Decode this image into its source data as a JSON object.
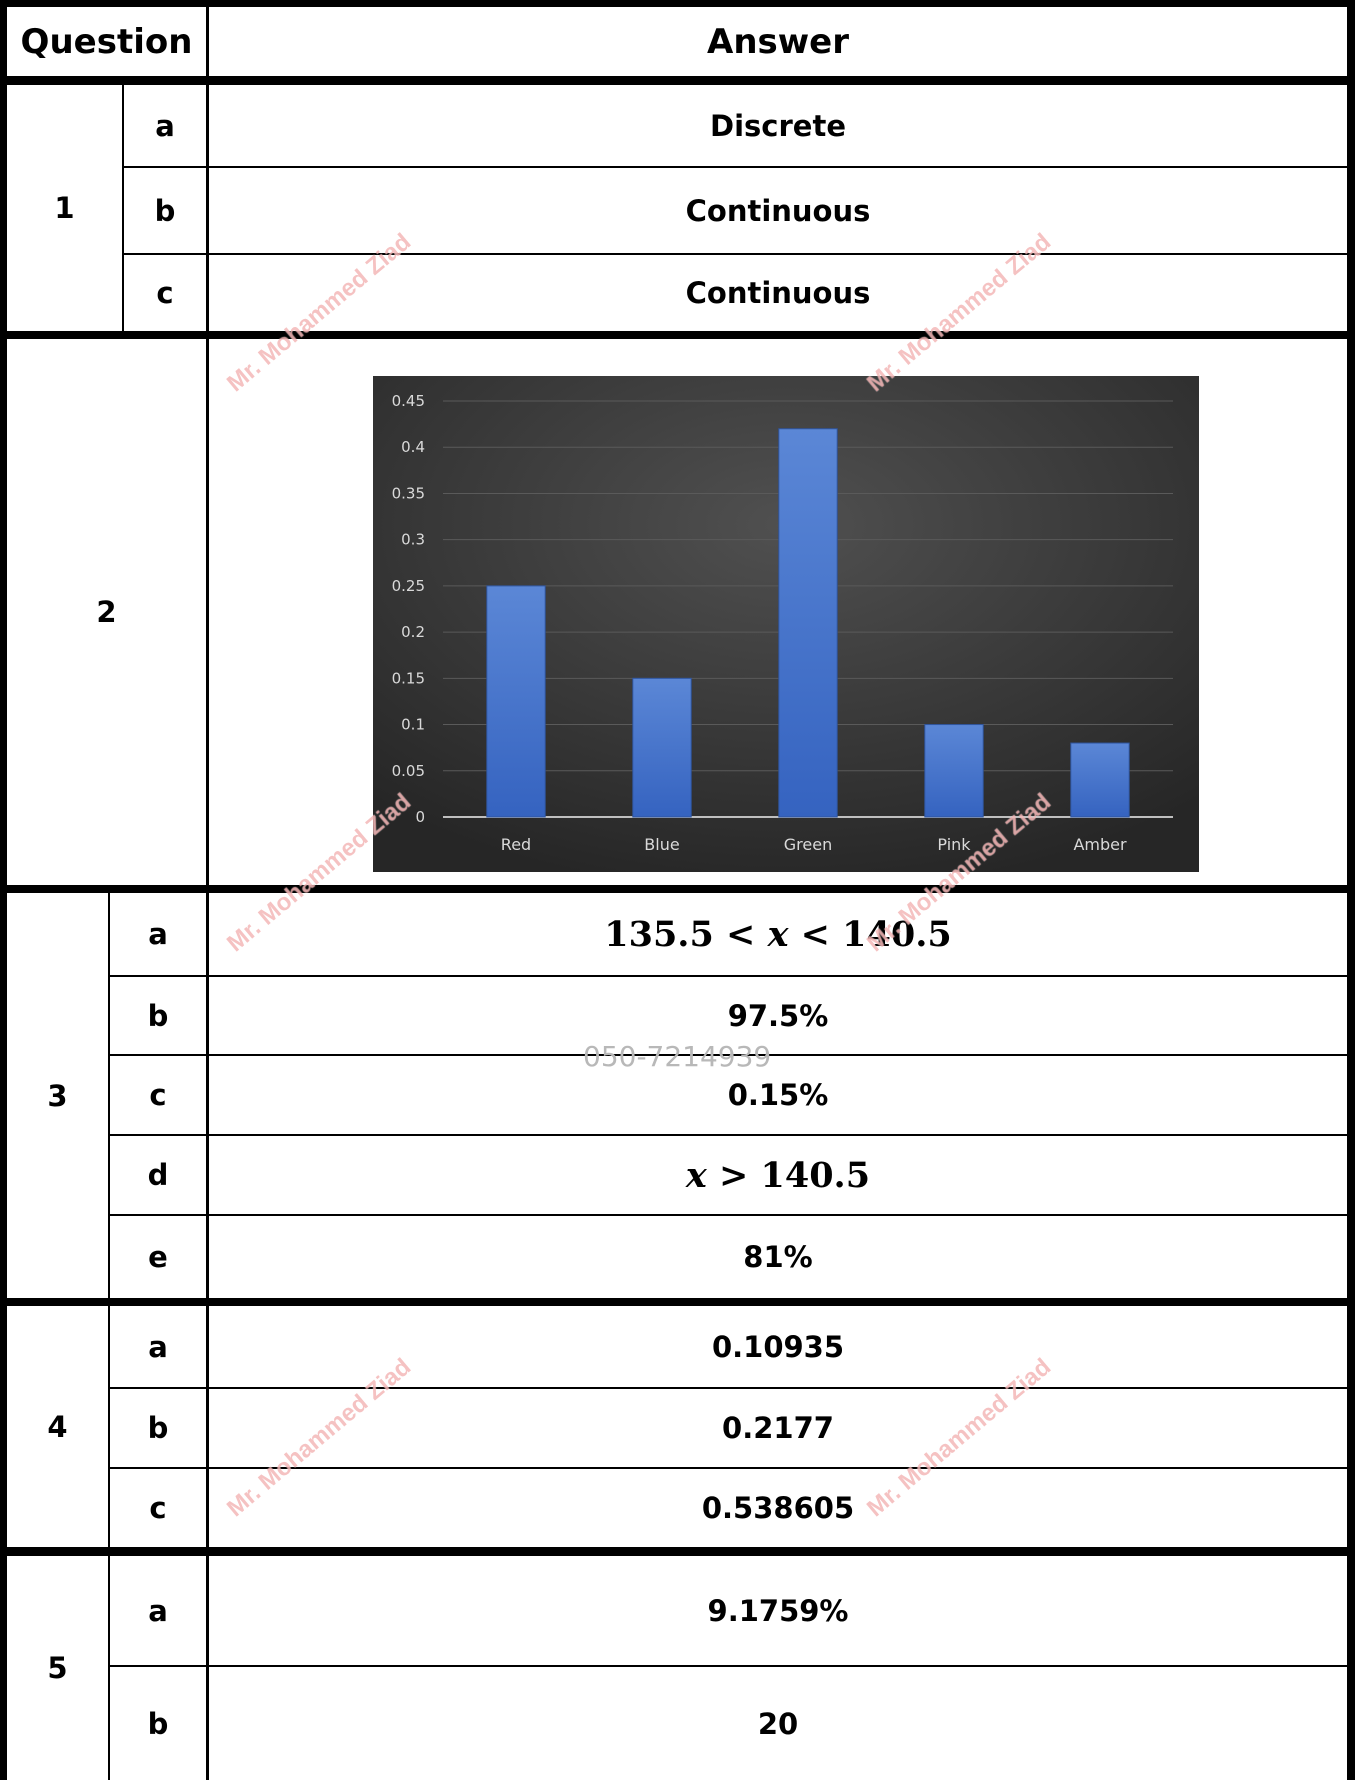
{
  "header": {
    "question": "Question",
    "answer": "Answer"
  },
  "q1": {
    "number": "1",
    "a": {
      "part": "a",
      "answer": "Discrete"
    },
    "b": {
      "part": "b",
      "answer": "Continuous"
    },
    "c": {
      "part": "c",
      "answer": "Continuous"
    }
  },
  "q2": {
    "number": "2"
  },
  "q3": {
    "number": "3",
    "a": {
      "part": "a",
      "lower": "135.5",
      "lt": "<",
      "var": "x",
      "lt2": "<",
      "upper": "140.5"
    },
    "b": {
      "part": "b",
      "answer": "97.5%"
    },
    "c": {
      "part": "c",
      "answer": "0.15%"
    },
    "d": {
      "part": "d",
      "var": "x",
      "gt": ">",
      "value": "140.5"
    },
    "e": {
      "part": "e",
      "answer": "81%"
    }
  },
  "q4": {
    "number": "4",
    "a": {
      "part": "a",
      "answer": "0.10935"
    },
    "b": {
      "part": "b",
      "answer": "0.2177"
    },
    "c": {
      "part": "c",
      "answer": "0.538605"
    }
  },
  "q5": {
    "number": "5",
    "a": {
      "part": "a",
      "answer": "9.1759%"
    },
    "b": {
      "part": "b",
      "answer": "20"
    }
  },
  "watermark": {
    "text": "Mr. Mohammed Ziad",
    "phone": "050-7214939",
    "color": "#e05050"
  },
  "chart_data": {
    "type": "bar",
    "categories": [
      "Red",
      "Blue",
      "Green",
      "Pink",
      "Amber"
    ],
    "values": [
      0.25,
      0.15,
      0.42,
      0.1,
      0.08
    ],
    "yticks": [
      "0",
      "0.05",
      "0.1",
      "0.15",
      "0.2",
      "0.25",
      "0.3",
      "0.35",
      "0.4",
      "0.45"
    ],
    "ylim": [
      0,
      0.45
    ],
    "grid": true,
    "bar_color": "#4472c4",
    "background": "#3a3a3a"
  }
}
